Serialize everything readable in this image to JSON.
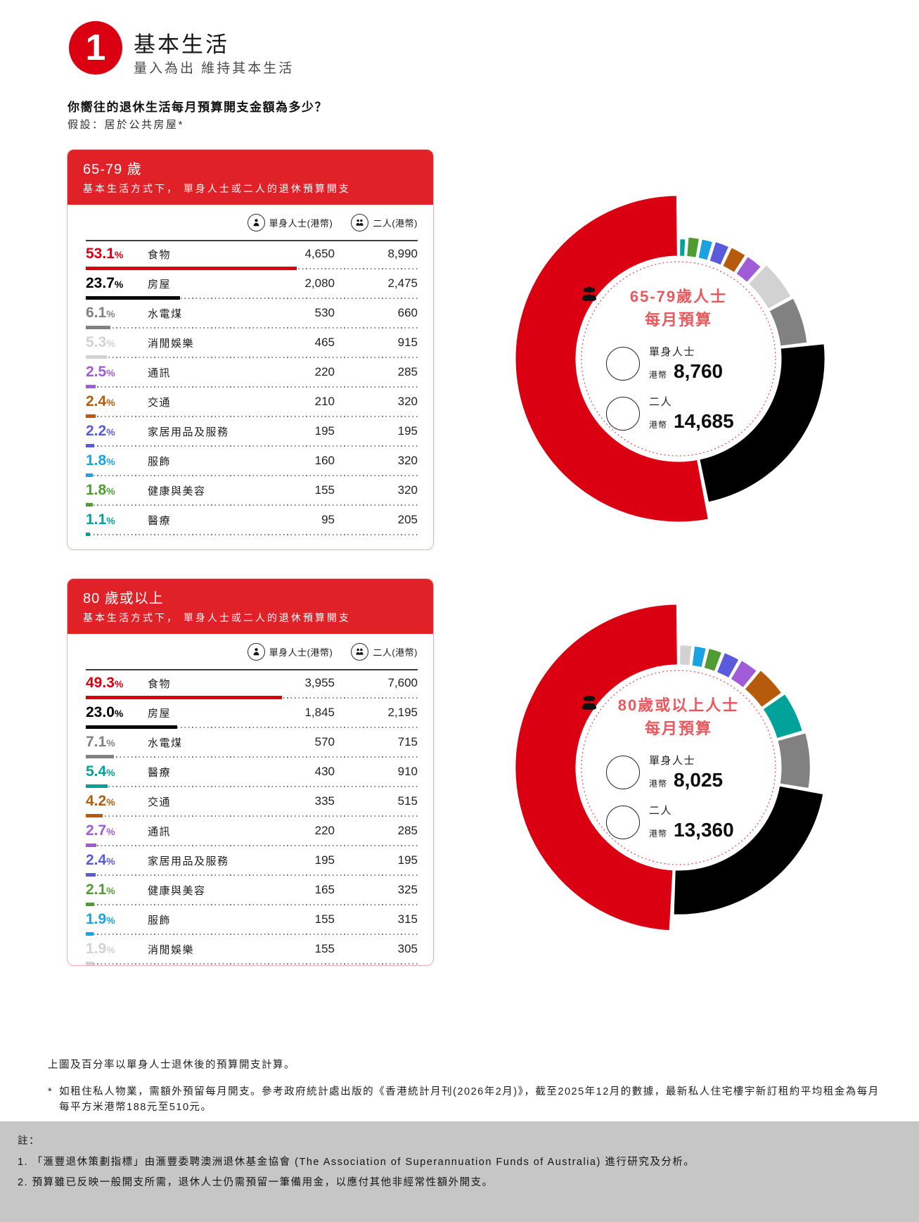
{
  "page": {
    "badge": "1",
    "title": "基本生活",
    "subtitle": "量入為出  維持其本生活",
    "question": "你嚮往的退休生活每月預算開支金額為多少？",
    "assumption": "假設：居於公共房屋*"
  },
  "percent_sign": "%",
  "colors": {
    "brand_red": "#db0011",
    "card_header_bg": "#e02128",
    "card_border": "#f1acb0",
    "center_title_red": "#ea575c",
    "dotted_ring_red": "#e4454c",
    "notes_box_bg": "#c6c6c6"
  },
  "chart_data": [
    {
      "type": "donut",
      "card": {
        "age_title": "65-79 歲",
        "subtitle": "基本生活方式下， 單身人士或二人的退休預算開支",
        "col_single": "單身人士(港幣)",
        "col_couple": "二人(港幣)"
      },
      "categories": [
        "食物",
        "房屋",
        "水電煤",
        "消閒娛樂",
        "通訊",
        "交通",
        "家居用品及服務",
        "服飾",
        "健康與美容",
        "醫療"
      ],
      "percentages": [
        53.1,
        23.7,
        6.1,
        5.3,
        2.5,
        2.4,
        2.2,
        1.8,
        1.8,
        1.1
      ],
      "single_values": [
        "4,650",
        "2,080",
        "530",
        "465",
        "220",
        "210",
        "195",
        "160",
        "155",
        "95"
      ],
      "couple_values": [
        "8,990",
        "2,475",
        "660",
        "915",
        "285",
        "320",
        "195",
        "320",
        "320",
        "205"
      ],
      "segment_colors": [
        "#db0011",
        "#000000",
        "#818181",
        "#d2d2d2",
        "#a05bd6",
        "#b65a0c",
        "#5a5add",
        "#1ba2e0",
        "#4f9d32",
        "#00a29a"
      ],
      "center": {
        "title_line1": "65-79歲人士",
        "title_line2": "每月預算",
        "single_label": "單身人士",
        "currency": "港幣",
        "single_amount": "8,760",
        "couple_label": "二人",
        "couple_amount": "14,685"
      }
    },
    {
      "type": "donut",
      "card": {
        "age_title": "80 歲或以上",
        "subtitle": "基本生活方式下， 單身人士或二人的退休預算開支",
        "col_single": "單身人士(港幣)",
        "col_couple": "二人(港幣)"
      },
      "categories": [
        "食物",
        "房屋",
        "水電煤",
        "醫療",
        "交通",
        "通訊",
        "家居用品及服務",
        "健康與美容",
        "服飾",
        "消閒娛樂"
      ],
      "percentages": [
        49.3,
        23.0,
        7.1,
        5.4,
        4.2,
        2.7,
        2.4,
        2.1,
        1.9,
        1.9
      ],
      "single_values": [
        "3,955",
        "1,845",
        "570",
        "430",
        "335",
        "220",
        "195",
        "165",
        "155",
        "155"
      ],
      "couple_values": [
        "7,600",
        "2,195",
        "715",
        "910",
        "515",
        "285",
        "195",
        "325",
        "315",
        "305"
      ],
      "segment_colors": [
        "#db0011",
        "#000000",
        "#818181",
        "#00a29a",
        "#b65a0c",
        "#a05bd6",
        "#5a5add",
        "#4f9d32",
        "#1ba2e0",
        "#d2d2d2"
      ],
      "center": {
        "title_line1": "80歲或以上人士",
        "title_line2": "每月預算",
        "single_label": "單身人士",
        "currency": "港幣",
        "single_amount": "8,025",
        "couple_label": "二人",
        "couple_amount": "13,360"
      }
    }
  ],
  "footnotes": {
    "basis": "上圖及百分率以單身人士退休後的預算開支計算。",
    "star": "*",
    "rental": "如租住私人物業，需額外預留每月開支。參考政府統計處出版的《香港統計月刊(2026年2月)》，截至2025年12月的數據，最新私人住宅樓宇新訂租約平均租金為每月每平方米港幣188元至510元。",
    "notes_label": "註：",
    "notes": [
      "1. 「滙豐退休策劃指標」由滙豐委聘澳洲退休基金協會 (The Association of Superannuation Funds of Australia) 進行研究及分析。",
      "2. 預算雖已反映一般開支所需，退休人士仍需預留一筆備用金，以應付其他非經常性額外開支。"
    ]
  }
}
